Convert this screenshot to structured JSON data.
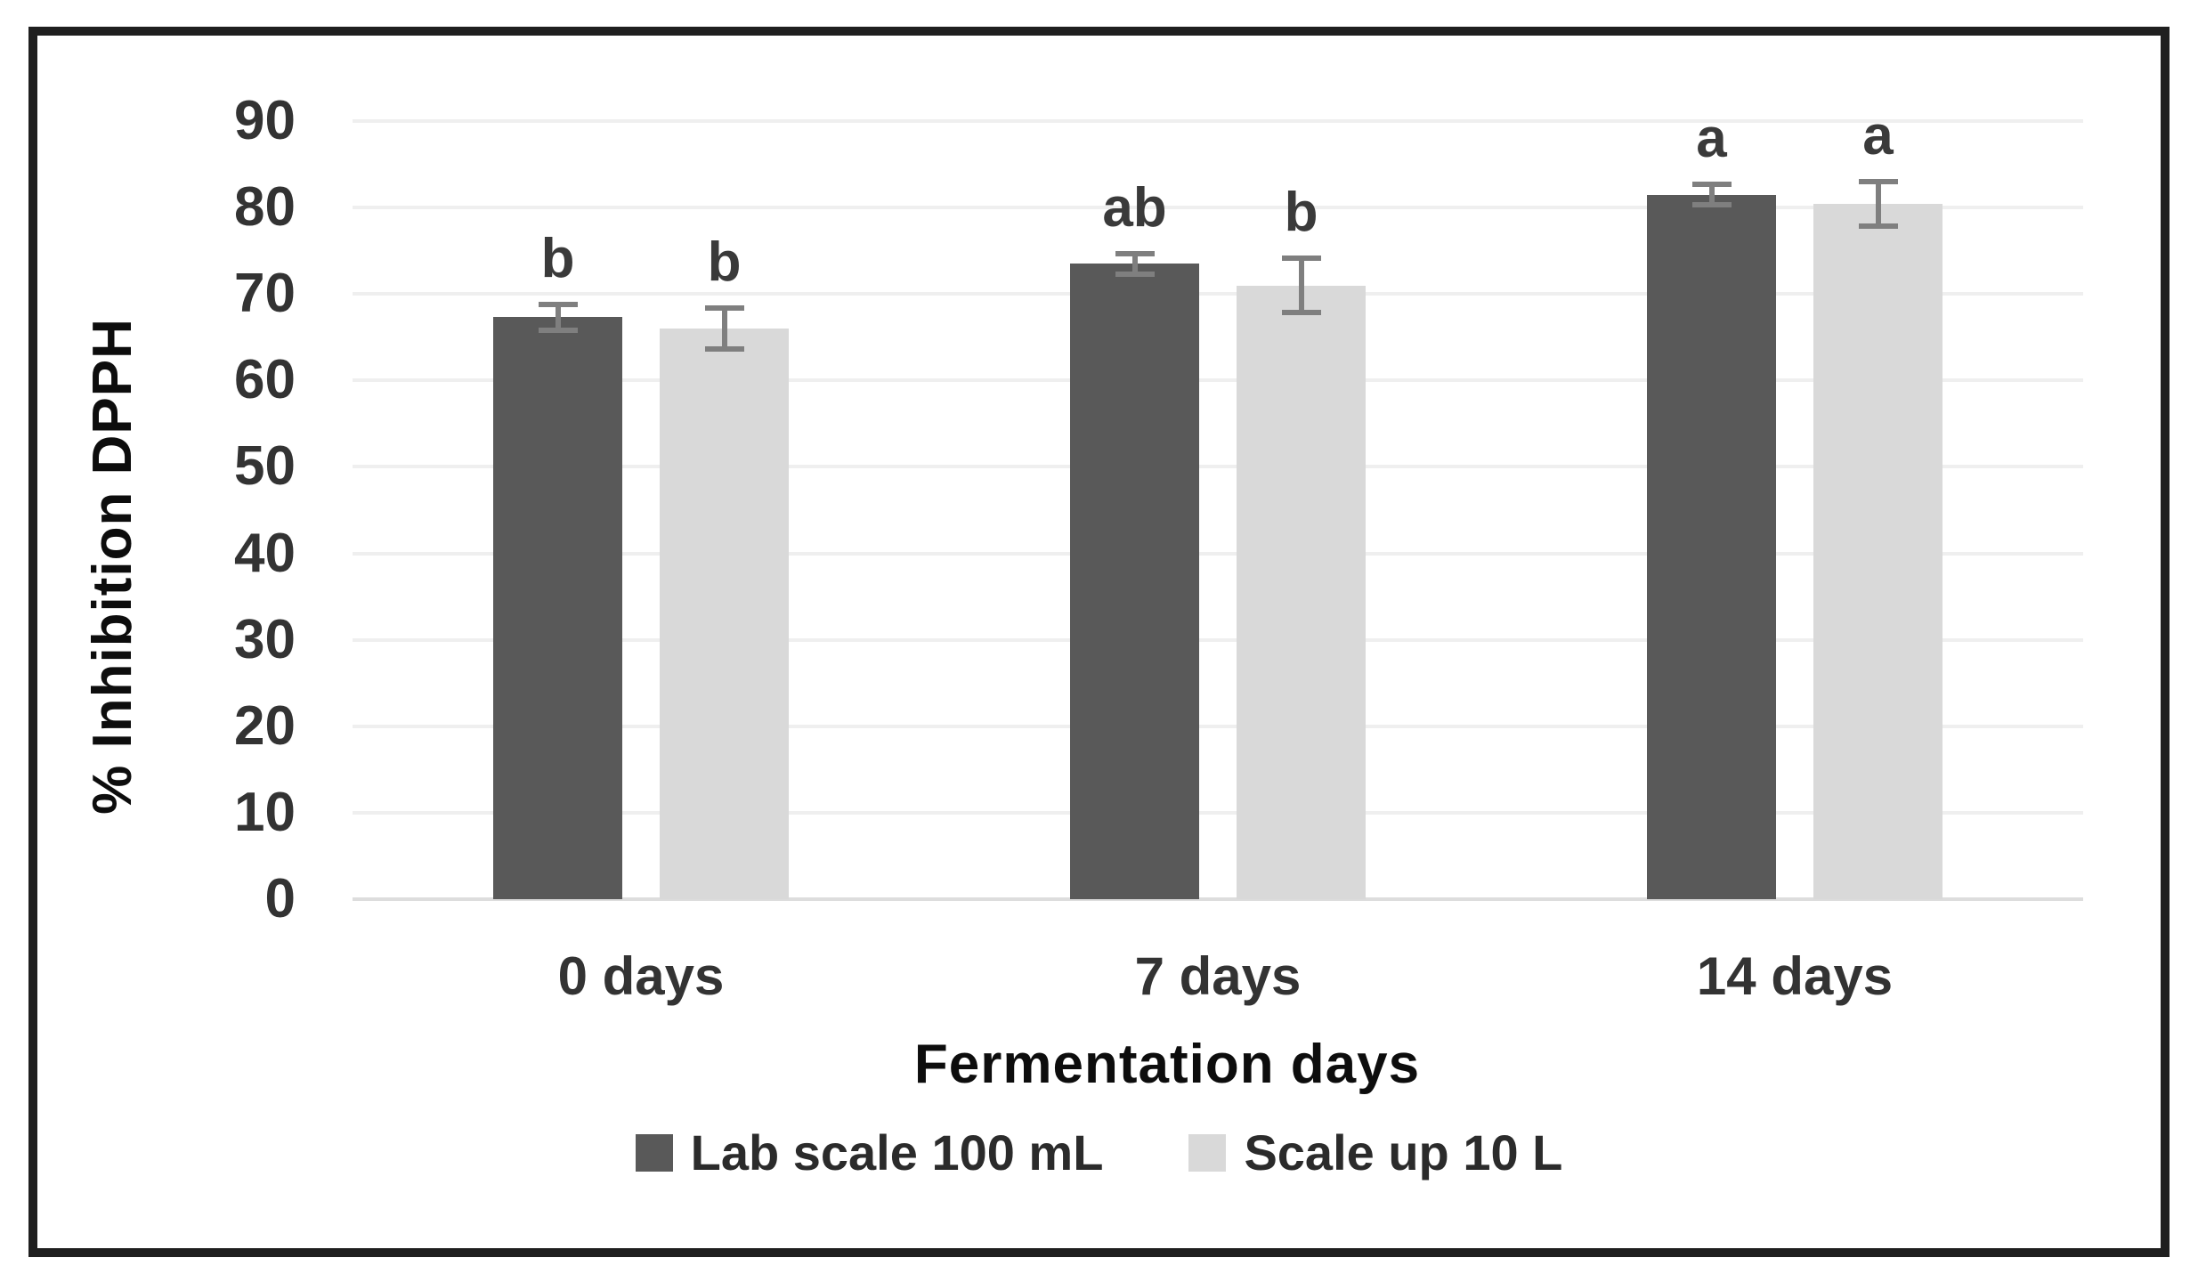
{
  "chart_data": {
    "type": "bar",
    "title": "",
    "categories": [
      "0 days",
      "7 days",
      "14 days"
    ],
    "series": [
      {
        "name": "Lab scale 100 mL",
        "color": "#595959",
        "values": [
          67.3,
          73.5,
          81.5
        ],
        "errors": [
          1.8,
          1.5,
          1.5
        ],
        "sig_letters": [
          "b",
          "ab",
          "a"
        ]
      },
      {
        "name": "Scale up 10 L",
        "color": "#d9d9d9",
        "values": [
          66.0,
          71.0,
          80.4
        ],
        "errors": [
          2.7,
          3.5,
          2.9
        ],
        "sig_letters": [
          "b",
          "b",
          "a"
        ]
      }
    ],
    "xlabel": "Fermentation days",
    "ylabel": "% Inhibition DPPH",
    "ylim": [
      0,
      90
    ],
    "yticks": [
      0,
      10,
      20,
      30,
      40,
      50,
      60,
      70,
      80,
      90
    ],
    "grid": true,
    "legend_position": "bottom",
    "colors": {
      "gridline": "#efefef",
      "baseline": "#dddddd",
      "error_bar": "#7f7f7f",
      "frame_border": "#1f1f1f",
      "background": "#ffffff",
      "tick_text": "#333333",
      "title_text": "#0d0d0d"
    }
  }
}
